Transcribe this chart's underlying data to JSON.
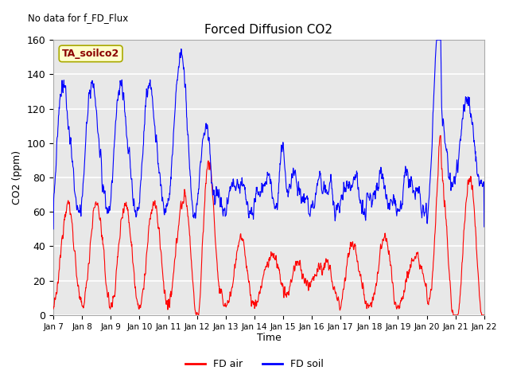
{
  "title": "Forced Diffusion CO2",
  "top_left_text": "No data for f_FD_Flux",
  "annotation_box": "TA_soilco2",
  "ylabel": "CO2 (ppm)",
  "xlabel": "Time",
  "ylim": [
    0,
    160
  ],
  "yticks": [
    0,
    20,
    40,
    60,
    80,
    100,
    120,
    140,
    160
  ],
  "x_tick_labels": [
    "Jan 7",
    "Jan 8",
    "Jan 9",
    "Jan 10",
    "Jan 11",
    "Jan 12",
    "Jan 13",
    "Jan 14",
    "Jan 15",
    "Jan 16",
    "Jan 17",
    "Jan 18",
    "Jan 19",
    "Jan 20",
    "Jan 21",
    "Jan 22"
  ],
  "plot_bg_color": "#e8e8e8",
  "grid_color": "white",
  "line_red_color": "red",
  "line_blue_color": "blue",
  "legend_labels": [
    "FD air",
    "FD soil"
  ],
  "annotation_box_color": "#ffffcc",
  "annotation_text_color": "#8b0000",
  "figsize": [
    6.4,
    4.8
  ],
  "dpi": 100
}
